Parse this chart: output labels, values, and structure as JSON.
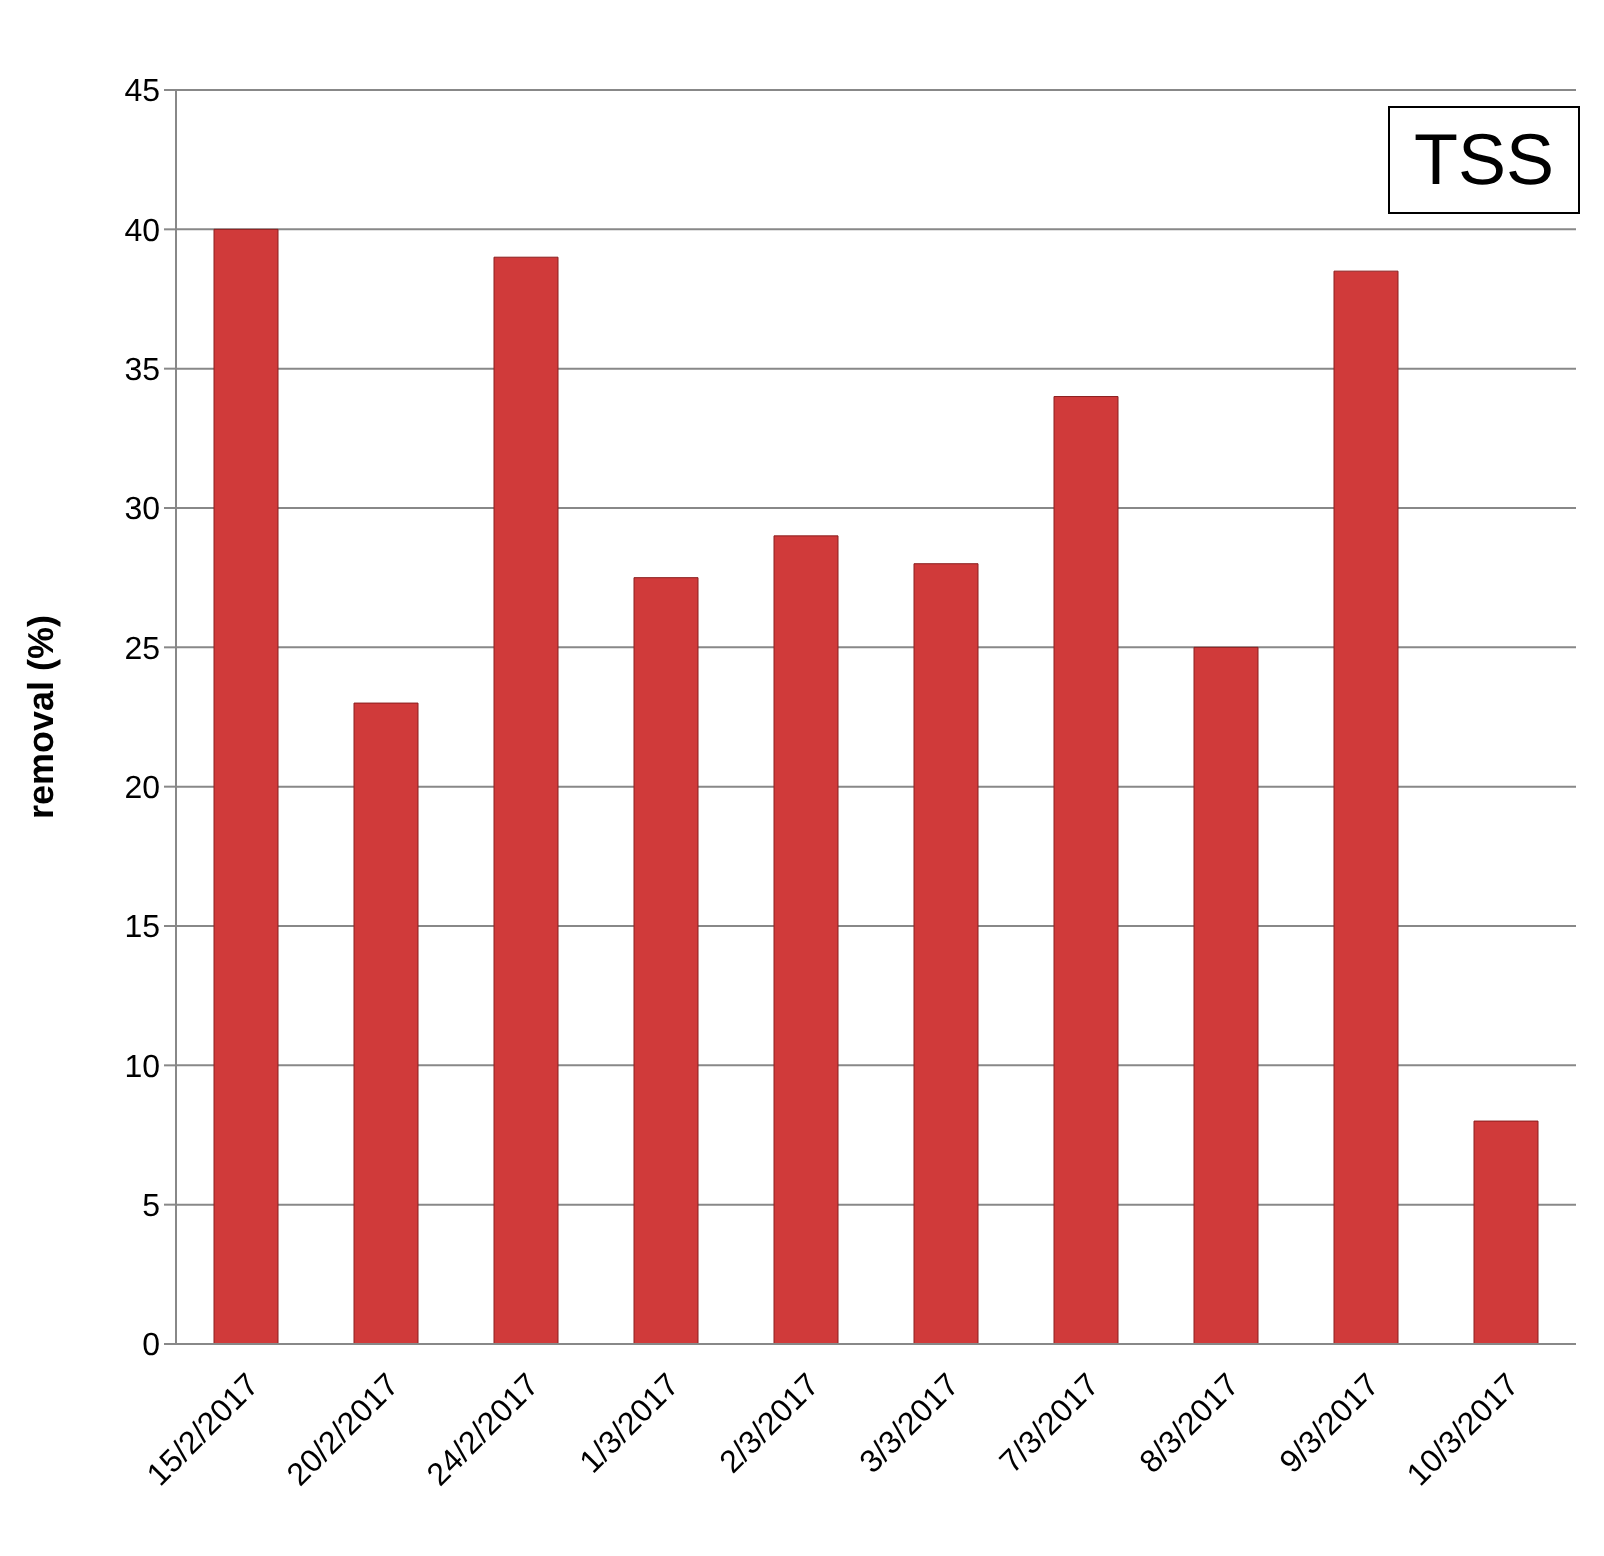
{
  "chart_data": {
    "type": "bar",
    "ylabel": "removal (%)",
    "annotations": [
      "TSS"
    ],
    "categories": [
      "15/2/2017",
      "20/2/2017",
      "24/2/2017",
      "1/3/2017",
      "2/3/2017",
      "3/3/2017",
      "7/3/2017",
      "8/3/2017",
      "9/3/2017",
      "10/3/2017"
    ],
    "values": [
      40,
      23,
      39,
      27.5,
      29,
      28,
      34,
      25,
      38.5,
      8
    ],
    "color": "#d03a3a",
    "ylim": [
      0,
      45
    ],
    "yticks": [
      0,
      5,
      10,
      15,
      20,
      25,
      30,
      35,
      40,
      45
    ],
    "grid": "y"
  }
}
